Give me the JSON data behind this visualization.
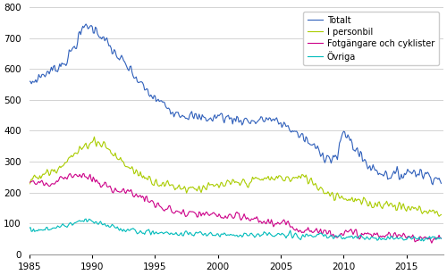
{
  "xlim": [
    1985.0,
    2017.92
  ],
  "ylim": [
    0,
    800
  ],
  "yticks": [
    0,
    100,
    200,
    300,
    400,
    500,
    600,
    700,
    800
  ],
  "xticks": [
    1985,
    1990,
    1995,
    2000,
    2005,
    2010,
    2015
  ],
  "colors": {
    "totalt": "#3060bb",
    "personbil": "#aacc00",
    "fotgangare": "#cc0088",
    "ovriga": "#00bbbb"
  },
  "legend_labels": [
    "Totalt",
    "I personbil",
    "Fotgängare och cyklister",
    "Övriga"
  ],
  "background_color": "#ffffff",
  "grid_color": "#cccccc",
  "linewidth": 0.8
}
